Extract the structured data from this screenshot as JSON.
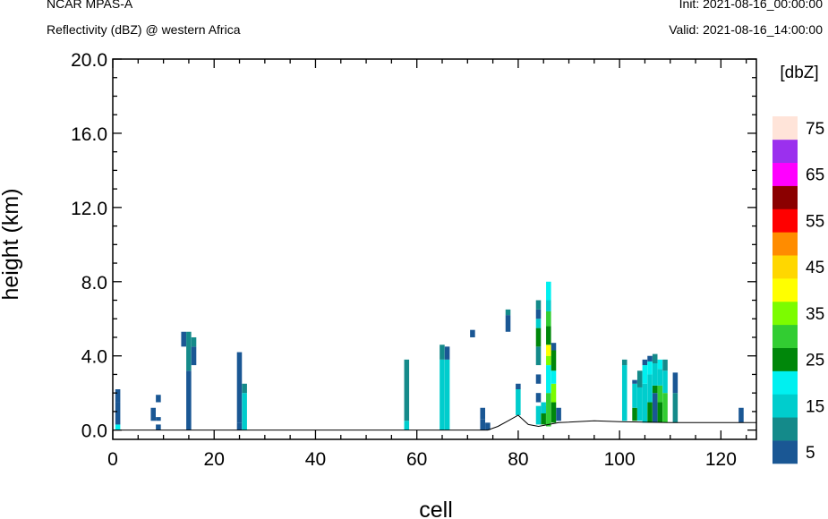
{
  "header": {
    "model": "NCAR MPAS-A",
    "field": "Reflectivity (dBZ) @ western Africa",
    "init": "Init: 2021-08-16_00:00:00",
    "valid": "Valid: 2021-08-16_14:00:00"
  },
  "chart_data": {
    "type": "heatmap",
    "title": "Reflectivity (dBZ) @ western Africa",
    "xlabel": "cell",
    "ylabel": "height (km)",
    "xlim": [
      0,
      127
    ],
    "ylim": [
      -0.5,
      20
    ],
    "x_ticks": [
      0,
      20,
      40,
      60,
      80,
      100,
      120
    ],
    "x_tick_labels": [
      "0",
      "20",
      "40",
      "60",
      "80",
      "100",
      "120"
    ],
    "y_ticks": [
      0,
      4,
      8,
      12,
      16,
      20
    ],
    "y_tick_labels": [
      "0.0",
      "4.0",
      "8.0",
      "12.0",
      "16.0",
      "20.0"
    ],
    "grid": false,
    "colorbar": {
      "units": "[dbZ]",
      "levels": [
        5,
        10,
        15,
        20,
        25,
        30,
        35,
        40,
        45,
        50,
        55,
        60,
        65,
        70,
        75
      ],
      "labels": [
        "5",
        "15",
        "25",
        "35",
        "45",
        "55",
        "65",
        "75"
      ],
      "colors": [
        "#1a5794",
        "#148a8a",
        "#00cdcd",
        "#00f0f0",
        "#00870a",
        "#32cd32",
        "#7cfc00",
        "#ffff00",
        "#ffd700",
        "#ff8c00",
        "#ff0000",
        "#8b0000",
        "#ff00ff",
        "#9b30ee",
        "#ffe4d9"
      ]
    },
    "terrain": [
      [
        0,
        0
      ],
      [
        74,
        0
      ],
      [
        76,
        0.2
      ],
      [
        78,
        0.5
      ],
      [
        80,
        0.8
      ],
      [
        82,
        0.3
      ],
      [
        84,
        0.2
      ],
      [
        86,
        0.3
      ],
      [
        88,
        0.4
      ],
      [
        95,
        0.5
      ],
      [
        100,
        0.45
      ],
      [
        110,
        0.4
      ],
      [
        125,
        0.4
      ],
      [
        127,
        0.4
      ]
    ],
    "cells": [
      {
        "x": 1,
        "cols": [
          [
            0,
            0.3,
            20
          ],
          [
            0.3,
            1.5,
            5
          ],
          [
            1.5,
            2.2,
            5
          ]
        ]
      },
      {
        "x": 8,
        "cols": [
          [
            0.5,
            1.2,
            5
          ]
        ]
      },
      {
        "x": 9,
        "cols": [
          [
            0,
            0.3,
            5
          ],
          [
            0.5,
            0.7,
            5
          ],
          [
            1.5,
            1.9,
            5
          ]
        ]
      },
      {
        "x": 14,
        "cols": [
          [
            4.5,
            5.3,
            5
          ]
        ]
      },
      {
        "x": 15,
        "cols": [
          [
            0,
            3.2,
            5
          ],
          [
            3.2,
            4.3,
            10
          ],
          [
            4.3,
            5.3,
            10
          ]
        ]
      },
      {
        "x": 16,
        "cols": [
          [
            3.5,
            4.5,
            5
          ],
          [
            4.5,
            5.0,
            10
          ]
        ]
      },
      {
        "x": 25,
        "cols": [
          [
            0,
            0.4,
            5
          ],
          [
            0.4,
            4.2,
            5
          ]
        ]
      },
      {
        "x": 26,
        "cols": [
          [
            0,
            2.0,
            15
          ],
          [
            2.0,
            2.5,
            10
          ]
        ]
      },
      {
        "x": 58,
        "cols": [
          [
            0,
            0.5,
            15
          ],
          [
            0.5,
            3.8,
            10
          ]
        ]
      },
      {
        "x": 65,
        "cols": [
          [
            0,
            3.8,
            15
          ],
          [
            3.8,
            4.6,
            10
          ]
        ]
      },
      {
        "x": 66,
        "cols": [
          [
            0,
            3.8,
            15
          ],
          [
            3.8,
            4.5,
            5
          ]
        ]
      },
      {
        "x": 71,
        "cols": [
          [
            5.0,
            5.4,
            5
          ]
        ]
      },
      {
        "x": 73,
        "cols": [
          [
            0.6,
            1.2,
            5
          ],
          [
            0,
            0.6,
            5
          ]
        ]
      },
      {
        "x": 74,
        "cols": [
          [
            0,
            0.4,
            5
          ]
        ]
      },
      {
        "x": 78,
        "cols": [
          [
            5.3,
            6.2,
            5
          ],
          [
            6.2,
            6.5,
            10
          ]
        ]
      },
      {
        "x": 80,
        "cols": [
          [
            0.8,
            2.2,
            15
          ],
          [
            2.2,
            2.5,
            5
          ]
        ]
      },
      {
        "x": 84,
        "cols": [
          [
            0.3,
            1.3,
            15
          ],
          [
            1.5,
            2.0,
            5
          ],
          [
            2.5,
            3.0,
            5
          ],
          [
            3.5,
            4.5,
            10
          ],
          [
            4.5,
            5.5,
            25
          ],
          [
            5.5,
            6.0,
            15
          ],
          [
            6.0,
            6.5,
            5
          ],
          [
            6.5,
            7.0,
            10
          ]
        ]
      },
      {
        "x": 85,
        "cols": [
          [
            0.3,
            1.0,
            25
          ],
          [
            1.0,
            1.3,
            5
          ],
          [
            0.9,
            1.5,
            15
          ]
        ]
      },
      {
        "x": 86,
        "cols": [
          [
            0.2,
            2.0,
            30
          ],
          [
            2.0,
            3.5,
            20
          ],
          [
            3.5,
            4.0,
            35
          ],
          [
            4.0,
            4.6,
            40
          ],
          [
            4.6,
            5.6,
            25
          ],
          [
            5.6,
            6.4,
            30
          ],
          [
            6.4,
            7.0,
            15
          ],
          [
            7.0,
            8.0,
            20
          ]
        ]
      },
      {
        "x": 87,
        "cols": [
          [
            0.4,
            1.5,
            25
          ],
          [
            1.5,
            2.5,
            35
          ],
          [
            2.5,
            3.2,
            20
          ],
          [
            3.2,
            4.3,
            25
          ],
          [
            4.3,
            4.7,
            5
          ]
        ]
      },
      {
        "x": 88,
        "cols": [
          [
            0.5,
            1.2,
            5
          ]
        ]
      },
      {
        "x": 101,
        "cols": [
          [
            0.5,
            3.5,
            15
          ],
          [
            3.5,
            3.8,
            10
          ]
        ]
      },
      {
        "x": 103,
        "cols": [
          [
            0.5,
            1.2,
            25
          ],
          [
            1.2,
            2.5,
            15
          ],
          [
            2.5,
            2.7,
            5
          ]
        ]
      },
      {
        "x": 104,
        "cols": [
          [
            0.5,
            2.3,
            15
          ],
          [
            2.3,
            3.2,
            10
          ]
        ]
      },
      {
        "x": 105,
        "cols": [
          [
            0.4,
            2.5,
            15
          ],
          [
            2.5,
            3.5,
            20
          ],
          [
            3.5,
            3.8,
            5
          ]
        ]
      },
      {
        "x": 106,
        "cols": [
          [
            0.4,
            1.5,
            25
          ],
          [
            1.5,
            3.0,
            15
          ],
          [
            3.0,
            3.7,
            20
          ],
          [
            3.7,
            4.0,
            5
          ]
        ]
      },
      {
        "x": 107,
        "cols": [
          [
            0.4,
            2.0,
            5
          ],
          [
            2.0,
            2.4,
            25
          ],
          [
            2.4,
            3.6,
            15
          ],
          [
            3.6,
            4.1,
            10
          ]
        ]
      },
      {
        "x": 108,
        "cols": [
          [
            0.4,
            1.5,
            25
          ],
          [
            1.5,
            2.4,
            30
          ],
          [
            2.4,
            3.3,
            15
          ],
          [
            3.3,
            3.8,
            20
          ]
        ]
      },
      {
        "x": 109,
        "cols": [
          [
            0.4,
            2.0,
            30
          ],
          [
            2.0,
            3.2,
            15
          ],
          [
            3.2,
            3.8,
            10
          ]
        ]
      },
      {
        "x": 111,
        "cols": [
          [
            0.4,
            2.0,
            10
          ],
          [
            2.0,
            3.1,
            5
          ]
        ]
      },
      {
        "x": 124,
        "cols": [
          [
            0.4,
            1.2,
            5
          ]
        ]
      }
    ]
  }
}
